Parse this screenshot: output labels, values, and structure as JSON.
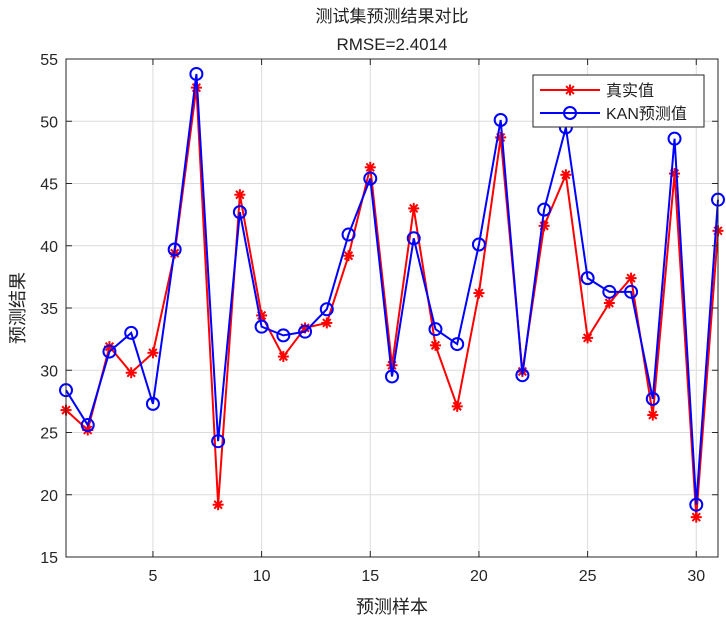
{
  "chart_data": {
    "type": "line",
    "title": "测试集预测结果对比",
    "subtitle": "RMSE=2.4014",
    "xlabel": "预测样本",
    "ylabel": "预测结果",
    "xlim": [
      1,
      31
    ],
    "ylim": [
      15,
      55
    ],
    "xticks": [
      5,
      10,
      15,
      20,
      25,
      30
    ],
    "yticks": [
      15,
      20,
      25,
      30,
      35,
      40,
      45,
      50,
      55
    ],
    "grid": true,
    "legend_position": "top-right",
    "x": [
      1,
      2,
      3,
      4,
      5,
      6,
      7,
      8,
      9,
      10,
      11,
      12,
      13,
      14,
      15,
      16,
      17,
      18,
      19,
      20,
      21,
      22,
      23,
      24,
      25,
      26,
      27,
      28,
      29,
      30,
      31
    ],
    "series": [
      {
        "name": "真实值",
        "color": "#ff0000",
        "marker": "asterisk",
        "values": [
          26.8,
          25.2,
          31.9,
          29.8,
          31.4,
          39.4,
          52.7,
          19.2,
          44.1,
          34.4,
          31.1,
          33.4,
          33.8,
          39.2,
          46.3,
          30.4,
          43.0,
          32.0,
          27.1,
          36.2,
          48.7,
          29.9,
          41.6,
          45.7,
          32.6,
          35.4,
          37.4,
          26.4,
          45.8,
          18.2,
          41.2
        ]
      },
      {
        "name": "KAN预测值",
        "color": "#0000ff",
        "marker": "circle",
        "values": [
          28.4,
          25.6,
          31.5,
          33.0,
          27.3,
          39.7,
          53.8,
          24.3,
          42.7,
          33.5,
          32.8,
          33.1,
          34.9,
          40.9,
          45.4,
          29.5,
          40.6,
          33.3,
          32.1,
          40.1,
          50.1,
          29.6,
          42.9,
          49.5,
          37.4,
          36.3,
          36.3,
          27.7,
          48.6,
          19.2,
          43.7
        ]
      }
    ]
  }
}
